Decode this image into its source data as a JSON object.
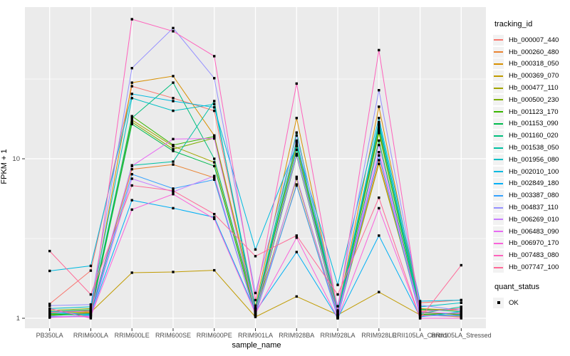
{
  "chart_data": {
    "type": "line",
    "title": "",
    "xlabel": "sample_name",
    "ylabel": "FPKM + 1",
    "yscale": "log10",
    "ylim": [
      0.87,
      90
    ],
    "y_ticks": [
      1,
      10
    ],
    "y_minor_ticks": [
      3.162,
      31.62
    ],
    "grid": "on",
    "legend_position": "right",
    "colors": {
      "panel_bg": "#EBEBEB",
      "grid": "#FFFFFF",
      "marker": "#000000",
      "axis_text": "#4D4D4D",
      "tick_mark": "#333333"
    },
    "categories": [
      "PB350LA",
      "RRIM600LA",
      "RRIM600LE",
      "RRIM600SE",
      "RRIM600PE",
      "RRIM901LA",
      "RRIM928BA",
      "RRIM928LA",
      "RRIM928LE",
      "RRII105LA_Control",
      "RRII105LA_Stressed"
    ],
    "series": [
      {
        "id": "Hb_000007_440",
        "color": "#F8766D",
        "values": [
          1.23,
          1.99,
          28.5,
          24,
          20,
          1.15,
          12.5,
          1.05,
          15.5,
          1.25,
          1.3
        ]
      },
      {
        "id": "Hb_000260_480",
        "color": "#EA8331",
        "values": [
          1.05,
          1.08,
          8.6,
          9.2,
          7.6,
          1.05,
          6.9,
          1.02,
          9.8,
          1.05,
          1.08
        ]
      },
      {
        "id": "Hb_000318_050",
        "color": "#D89000",
        "values": [
          1.1,
          1.12,
          30,
          33,
          14,
          1.2,
          18,
          1.1,
          21.2,
          1.15,
          1.12
        ]
      },
      {
        "id": "Hb_000369_070",
        "color": "#C09B00",
        "values": [
          1.05,
          1.09,
          1.93,
          1.95,
          2.0,
          1.02,
          1.37,
          1.05,
          1.46,
          1.05,
          1.02
        ]
      },
      {
        "id": "Hb_000477_110",
        "color": "#A3A500",
        "values": [
          1.08,
          1.1,
          17.5,
          12,
          9.5,
          1.1,
          7.5,
          1.04,
          9.3,
          1.1,
          1.05
        ]
      },
      {
        "id": "Hb_000500_230",
        "color": "#7CAE00",
        "values": [
          1.12,
          1.15,
          17,
          11.5,
          13.5,
          1.12,
          12,
          1.06,
          14.5,
          1.12,
          1.15
        ]
      },
      {
        "id": "Hb_001123_170",
        "color": "#39B600",
        "values": [
          1.06,
          1.05,
          18.5,
          12.2,
          13.8,
          1.08,
          13,
          1.03,
          15,
          1.08,
          1.06
        ]
      },
      {
        "id": "Hb_001153_090",
        "color": "#00BB4E",
        "values": [
          1.04,
          1.07,
          16.5,
          11.2,
          9.0,
          1.06,
          10.5,
          1.02,
          13,
          1.06,
          1.04
        ]
      },
      {
        "id": "Hb_001160_020",
        "color": "#00BF7D",
        "values": [
          1.1,
          1.13,
          18,
          30,
          10,
          1.14,
          14.6,
          1.08,
          16,
          1.14,
          1.1
        ]
      },
      {
        "id": "Hb_001538_050",
        "color": "#00C1A3",
        "values": [
          1.07,
          1.06,
          9.1,
          9.6,
          23,
          1.05,
          11.4,
          1.04,
          16.5,
          1.07,
          1.18
        ]
      },
      {
        "id": "Hb_001956_080",
        "color": "#00BFC4",
        "values": [
          1.15,
          1.18,
          24,
          20,
          22,
          1.16,
          12.8,
          1.1,
          17,
          1.18,
          1.25
        ]
      },
      {
        "id": "Hb_002010_100",
        "color": "#00BAE0",
        "values": [
          1.98,
          2.13,
          25.5,
          23,
          21,
          2.7,
          12.2,
          1.62,
          18,
          1.28,
          1.3
        ]
      },
      {
        "id": "Hb_002849_180",
        "color": "#00B0F6",
        "values": [
          1.1,
          1.05,
          5.5,
          4.9,
          4.3,
          1.1,
          2.6,
          1.0,
          3.3,
          1.02,
          1.1
        ]
      },
      {
        "id": "Hb_003387_080",
        "color": "#35A2FF",
        "values": [
          1.02,
          1.04,
          8.0,
          6.5,
          7.4,
          1.05,
          6.8,
          1.01,
          10.5,
          1.03,
          1.05
        ]
      },
      {
        "id": "Hb_004837_110",
        "color": "#9590FF",
        "values": [
          1.2,
          1.22,
          37,
          66,
          32,
          1.44,
          14,
          1.19,
          26.9,
          1.21,
          1.12
        ]
      },
      {
        "id": "Hb_006269_010",
        "color": "#C77CFF",
        "values": [
          1.03,
          1.02,
          7.5,
          6.2,
          7.8,
          1.04,
          7.7,
          1.02,
          12.2,
          1.04,
          1.03
        ]
      },
      {
        "id": "Hb_006483_090",
        "color": "#E76BF3",
        "values": [
          1.09,
          1.11,
          9.0,
          13.3,
          13.4,
          1.09,
          10.7,
          1.05,
          11.0,
          1.09,
          1.07
        ]
      },
      {
        "id": "Hb_006970_170",
        "color": "#FA62DB",
        "values": [
          1.01,
          1.03,
          4.8,
          6.0,
          4.2,
          1.07,
          3.2,
          1.0,
          4.9,
          1.0,
          1.0
        ]
      },
      {
        "id": "Hb_007483_080",
        "color": "#FF62BC",
        "values": [
          1.15,
          1.0,
          75,
          63,
          44,
          1.3,
          29.6,
          1.12,
          48,
          1.1,
          1.15
        ]
      },
      {
        "id": "Hb_007747_100",
        "color": "#FF6A98",
        "values": [
          2.64,
          1.41,
          6.8,
          6.3,
          4.5,
          2.45,
          3.3,
          1.41,
          5.7,
          1.0,
          2.15
        ]
      }
    ],
    "legend": {
      "tracking_title": "tracking_id",
      "quant_title": "quant_status",
      "quant_label": "OK"
    }
  }
}
